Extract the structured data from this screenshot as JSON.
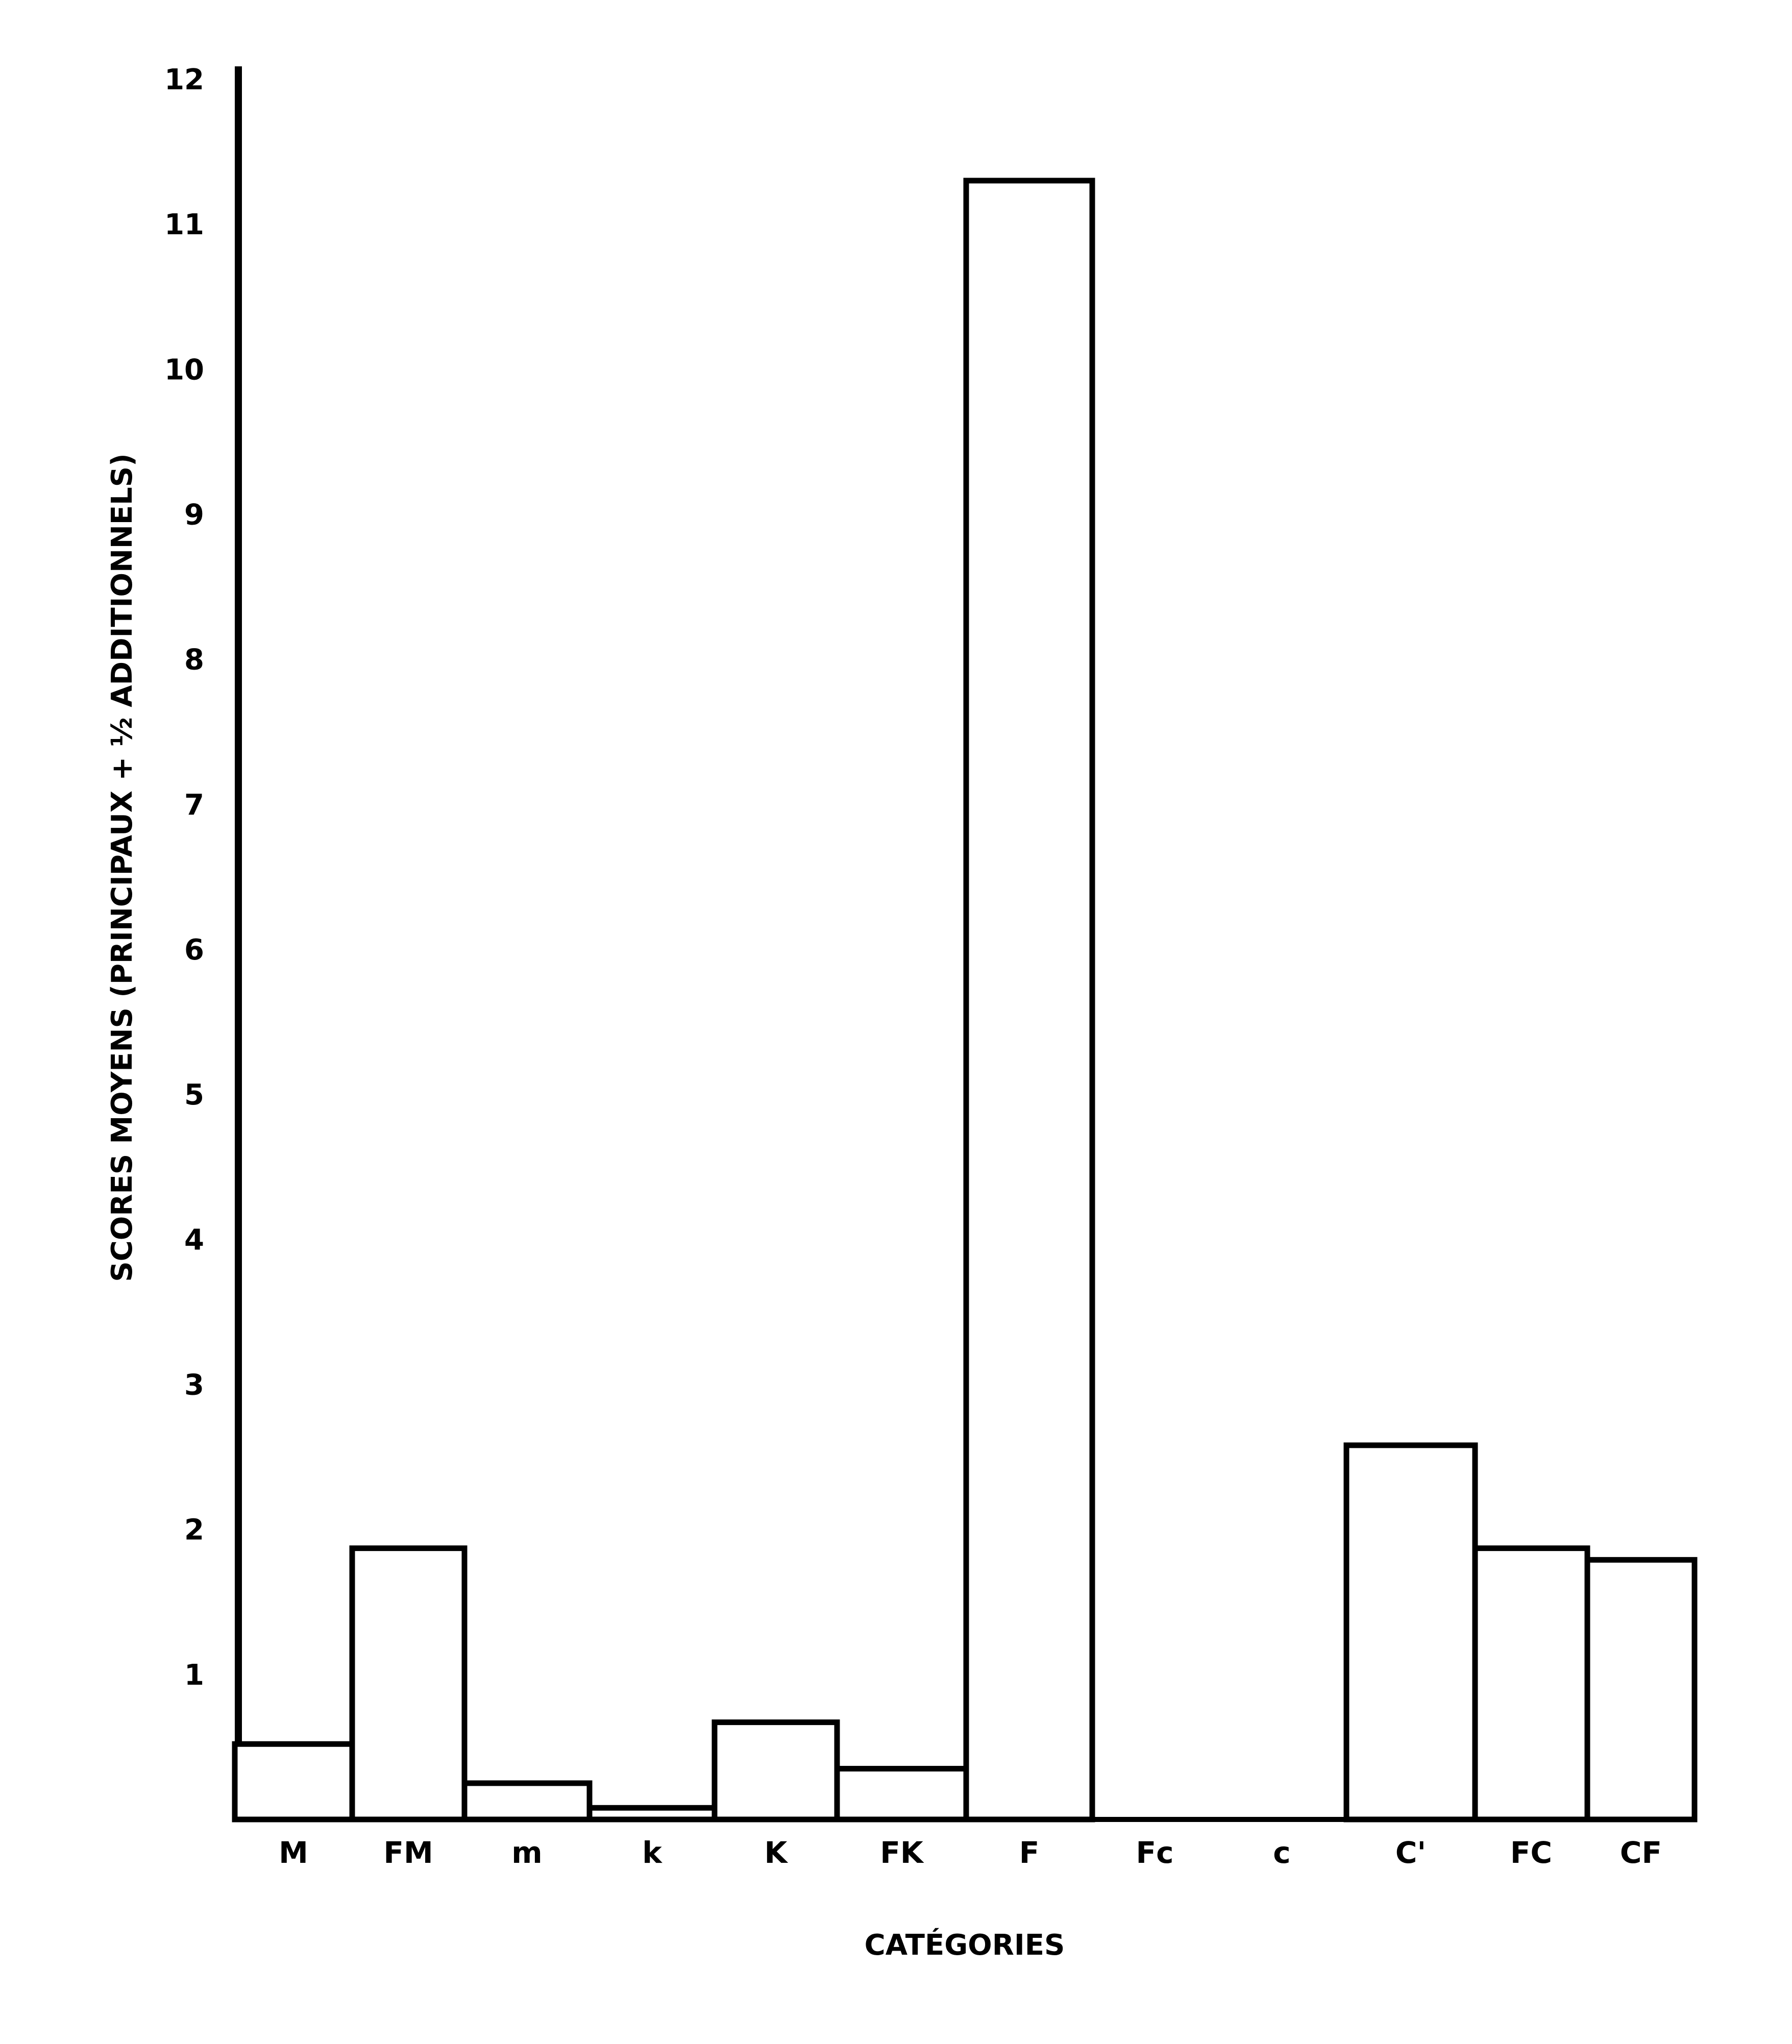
{
  "chart_data": {
    "type": "bar",
    "title": "",
    "xlabel": "CATÉGORIES",
    "ylabel": "SCORES MOYENS (PRINCIPAUX + ½ ADDITIONNELS)",
    "ylim": [
      0,
      12
    ],
    "yticks": [
      "1",
      "2",
      "3",
      "4",
      "5",
      "6",
      "7",
      "8",
      "9",
      "10",
      "11",
      "12"
    ],
    "grid": false,
    "legend": "none",
    "bar_fill": "#ffffff",
    "bar_stroke": "#000000",
    "categories": [
      "M",
      "FM",
      "m",
      "k",
      "K",
      "FK",
      "F",
      "Fc",
      "c",
      "C'",
      "FC",
      "CF"
    ],
    "values": [
      0.52,
      1.87,
      0.25,
      0.08,
      0.67,
      0.35,
      11.3,
      0,
      0,
      2.58,
      1.87,
      1.79
    ]
  }
}
